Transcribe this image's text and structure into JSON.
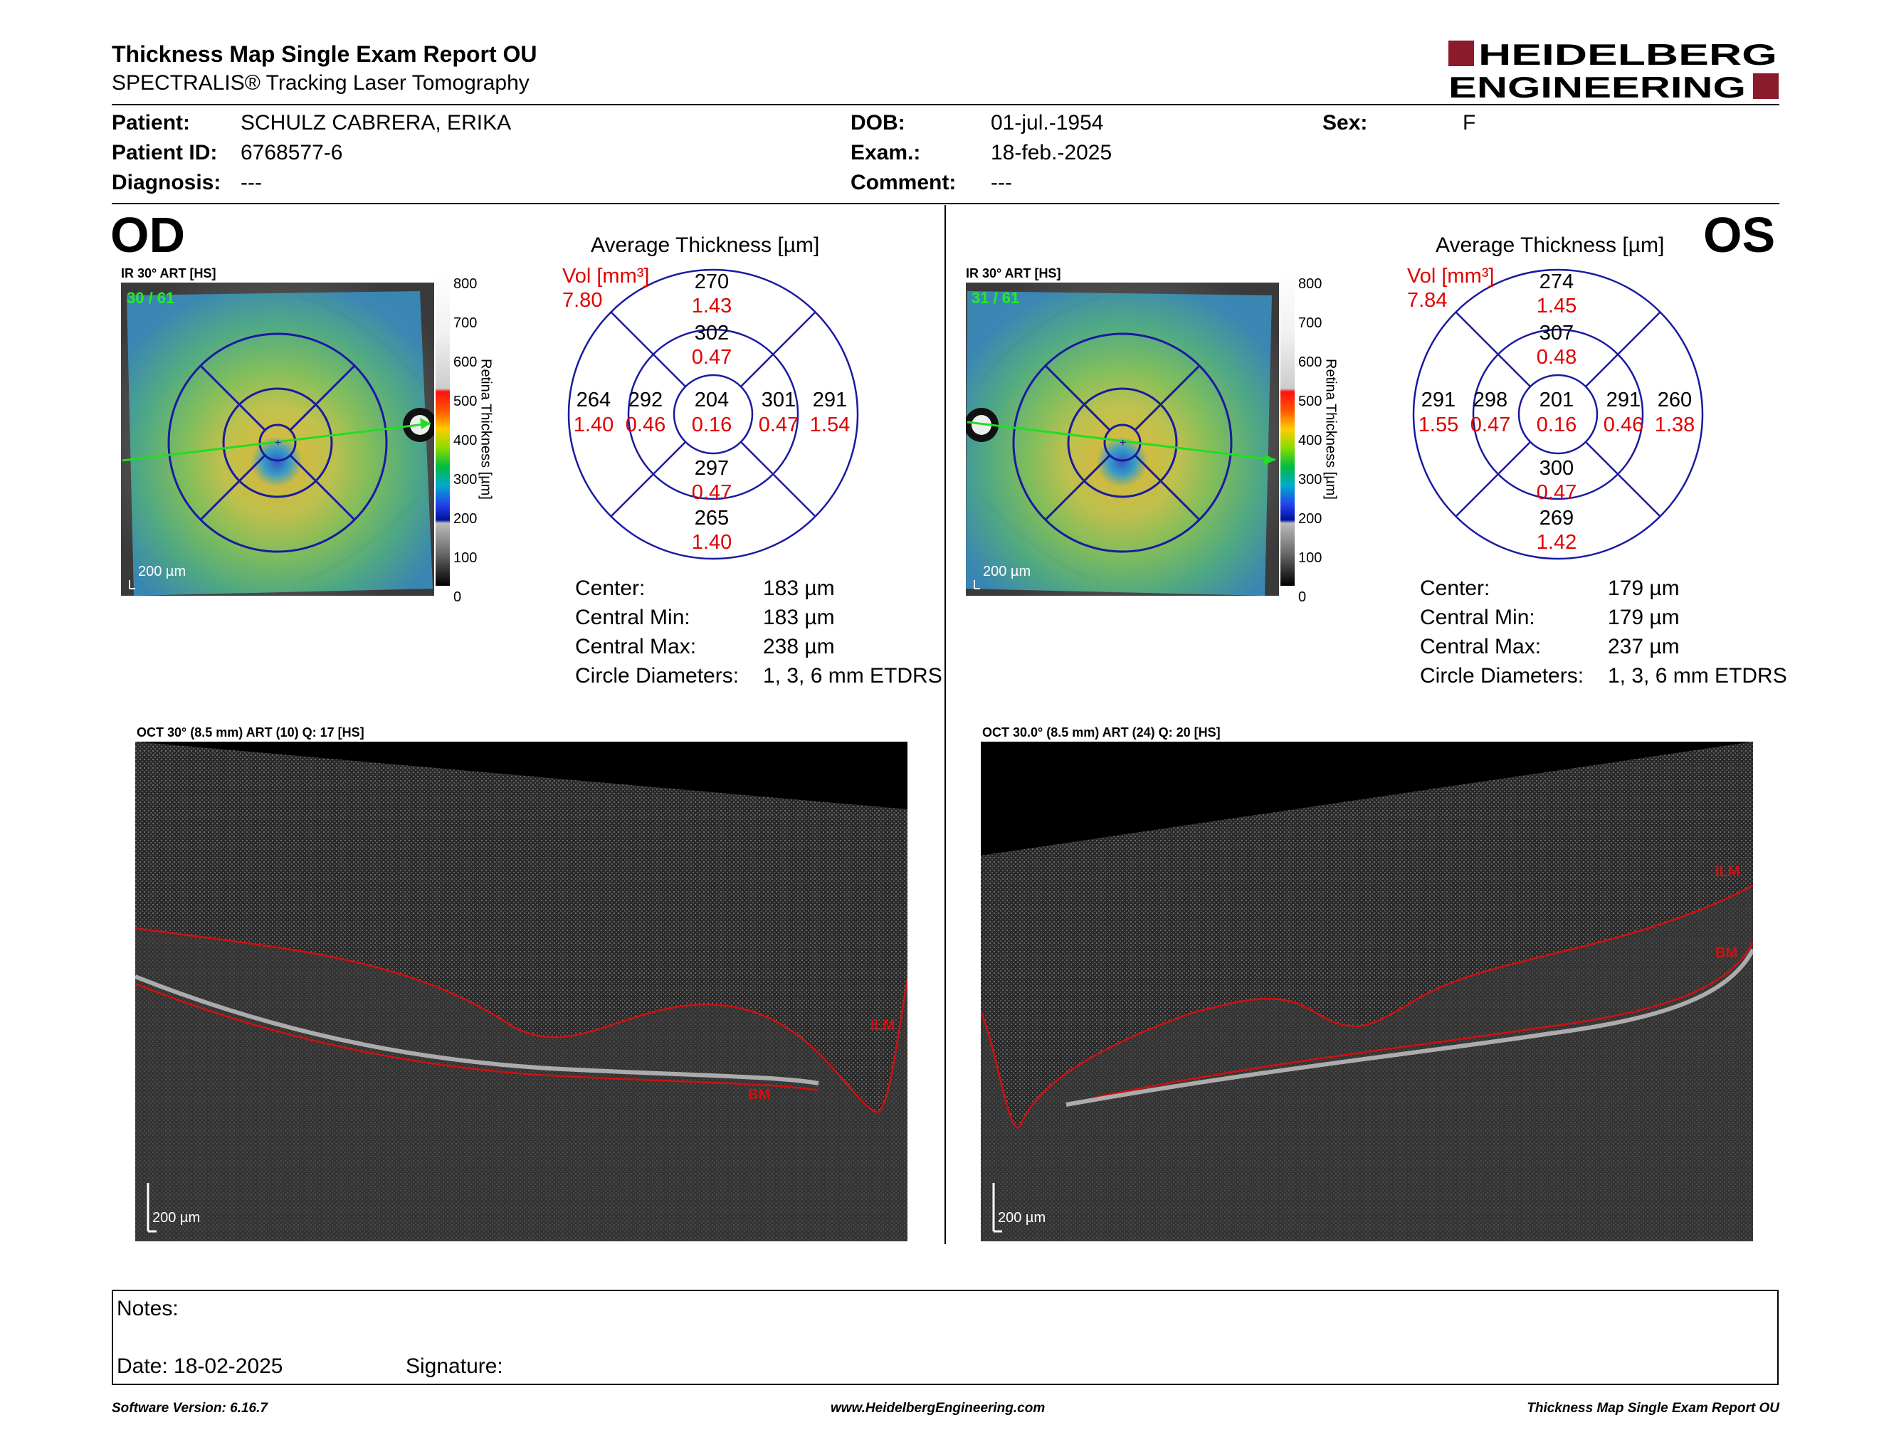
{
  "header": {
    "title": "Thickness Map Single Exam Report OU",
    "subtitle": "SPECTRALIS® Tracking Laser Tomography",
    "brand_line1": "HEIDELBERG",
    "brand_line2": "ENGINEERING"
  },
  "patient": {
    "patient_label": "Patient:",
    "patient_value": "SCHULZ CABRERA, ERIKA",
    "id_label": "Patient ID:",
    "id_value": "6768577-6",
    "diagnosis_label": "Diagnosis:",
    "diagnosis_value": "---",
    "dob_label": "DOB:",
    "dob_value": "01-jul.-1954",
    "exam_label": "Exam.:",
    "exam_value": "18-feb.-2025",
    "comment_label": "Comment:",
    "comment_value": "---",
    "sex_label": "Sex:",
    "sex_value": "F"
  },
  "colorbar": {
    "ticks": [
      "800",
      "700",
      "600",
      "500",
      "400",
      "300",
      "200",
      "100",
      "0"
    ],
    "label": "Retina Thickness [µm]"
  },
  "od": {
    "eye": "OD",
    "ir_label": "IR 30° ART [HS]",
    "ir_count": "30 / 61",
    "scale": "200 µm",
    "avg_title": "Average Thickness [µm]",
    "vol_label": "Vol [mm³]",
    "vol_value": "7.80",
    "sectors": {
      "center": {
        "t": "204",
        "v": "0.16"
      },
      "inner_sup": {
        "t": "302",
        "v": "0.47"
      },
      "inner_inf": {
        "t": "297",
        "v": "0.47"
      },
      "inner_left": {
        "t": "292",
        "v": "0.46"
      },
      "inner_right": {
        "t": "301",
        "v": "0.47"
      },
      "outer_sup": {
        "t": "270",
        "v": "1.43"
      },
      "outer_inf": {
        "t": "265",
        "v": "1.40"
      },
      "outer_left": {
        "t": "264",
        "v": "1.40"
      },
      "outer_right": {
        "t": "291",
        "v": "1.54"
      }
    },
    "stats": [
      {
        "label": "Center:",
        "value": "183 µm"
      },
      {
        "label": "Central Min:",
        "value": "183 µm"
      },
      {
        "label": "Central Max:",
        "value": "238 µm"
      },
      {
        "label": "Circle Diameters:",
        "value": "1, 3, 6 mm ETDRS"
      }
    ],
    "oct_label": "OCT 30° (8.5 mm) ART (10) Q: 17 [HS]",
    "ilm": "ILM",
    "bm": "BM",
    "oct_scale": "200 µm"
  },
  "os": {
    "eye": "OS",
    "ir_label": "IR 30° ART [HS]",
    "ir_count": "31 / 61",
    "scale": "200 µm",
    "avg_title": "Average Thickness [µm]",
    "vol_label": "Vol [mm³]",
    "vol_value": "7.84",
    "sectors": {
      "center": {
        "t": "201",
        "v": "0.16"
      },
      "inner_sup": {
        "t": "307",
        "v": "0.48"
      },
      "inner_inf": {
        "t": "300",
        "v": "0.47"
      },
      "inner_left": {
        "t": "298",
        "v": "0.47"
      },
      "inner_right": {
        "t": "291",
        "v": "0.46"
      },
      "outer_sup": {
        "t": "274",
        "v": "1.45"
      },
      "outer_inf": {
        "t": "269",
        "v": "1.42"
      },
      "outer_left": {
        "t": "291",
        "v": "1.55"
      },
      "outer_right": {
        "t": "260",
        "v": "1.38"
      }
    },
    "stats": [
      {
        "label": "Center:",
        "value": "179 µm"
      },
      {
        "label": "Central Min:",
        "value": "179 µm"
      },
      {
        "label": "Central Max:",
        "value": "237 µm"
      },
      {
        "label": "Circle Diameters:",
        "value": "1, 3, 6 mm ETDRS"
      }
    ],
    "oct_label": "OCT 30.0° (8.5 mm) ART (24) Q: 20 [HS]",
    "ilm": "ILM",
    "bm": "BM",
    "oct_scale": "200 µm"
  },
  "notes": {
    "notes_label": "Notes:",
    "date_label": "Date: 18-02-2025",
    "signature_label": "Signature:"
  },
  "footer": {
    "version": "Software Version: 6.16.7",
    "url": "www.HeidelbergEngineering.com",
    "report": "Thickness Map Single Exam Report OU"
  },
  "colors": {
    "brand": "#8b1a2b",
    "volume_red": "#e00000",
    "grid_blue": "#1a1aa0",
    "scan_line": "#22dd22",
    "seg_red": "#d01010"
  }
}
